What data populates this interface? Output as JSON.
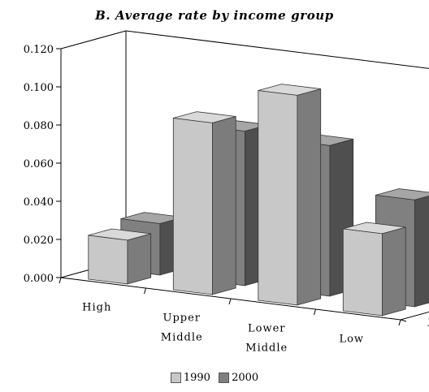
{
  "chart_data": {
    "type": "bar",
    "title": "B. Average rate by income group",
    "categories": [
      "High",
      "Upper Middle",
      "Lower Middle",
      "Low"
    ],
    "category_lines": [
      [
        "High"
      ],
      [
        "Upper",
        "Middle"
      ],
      [
        "Lower",
        "Middle"
      ],
      [
        "Low"
      ]
    ],
    "series": [
      {
        "name": "1990",
        "values": [
          0.023,
          0.09,
          0.11,
          0.043
        ],
        "color": "#c8c8c8"
      },
      {
        "name": "2000",
        "values": [
          0.027,
          0.081,
          0.079,
          0.056
        ],
        "color": "#808080"
      }
    ],
    "y_ticks": [
      "0.000",
      "0.020",
      "0.040",
      "0.060",
      "0.080",
      "0.100",
      "0.120"
    ],
    "ylim": [
      0,
      0.12
    ],
    "depth_labels": [
      "1990",
      "2000"
    ],
    "legend_position": "bottom",
    "grid": false
  }
}
